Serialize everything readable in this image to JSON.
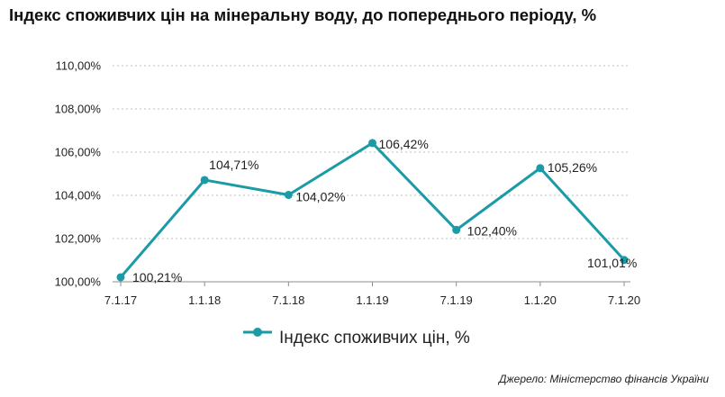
{
  "title": "Індекс споживчих цін на мінеральну воду, до попереднього періоду, %",
  "source": "Джерело: Міністерство фінансів України",
  "colors": {
    "series": "#1a9ba6",
    "text": "#222222",
    "grid": "#bfbfbf",
    "axis": "#8c8c8c"
  },
  "chart_data": {
    "type": "line",
    "title": "Індекс споживчих цін на мінеральну воду, до попереднього періоду, %",
    "x": [
      "7.1.17",
      "1.1.18",
      "7.1.18",
      "1.1.19",
      "7.1.19",
      "1.1.20",
      "7.1.20"
    ],
    "series": [
      {
        "name": "Індекс споживчих цін, %",
        "values": [
          100.21,
          104.71,
          104.02,
          106.42,
          102.4,
          105.26,
          101.01
        ],
        "labels": [
          "100,21%",
          "104,71%",
          "104,02%",
          "106,42%",
          "102,40%",
          "105,26%",
          "101,01%"
        ]
      }
    ],
    "ylim": [
      100,
      110
    ],
    "yticks": [
      "100,00%",
      "102,00%",
      "104,00%",
      "106,00%",
      "108,00%",
      "110,00%"
    ],
    "grid": "horizontal dashed",
    "legend": "bottom-center"
  }
}
